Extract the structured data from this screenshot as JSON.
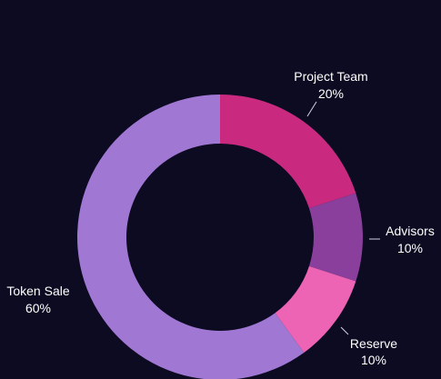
{
  "colors": {
    "background": "#0c0b22"
  },
  "chart_data": {
    "type": "pie",
    "title": "",
    "donut": true,
    "start_angle_deg": 0,
    "direction": "clockwise",
    "slices": [
      {
        "label": "Project Team",
        "value": 20,
        "value_label": "20%",
        "color": "#c92a7f"
      },
      {
        "label": "Advisors",
        "value": 10,
        "value_label": "10%",
        "color": "#8a3f9c"
      },
      {
        "label": "Reserve",
        "value": 10,
        "value_label": "10%",
        "color": "#ec64b3"
      },
      {
        "label": "Token Sale",
        "value": 60,
        "value_label": "60%",
        "color": "#a078d4"
      }
    ]
  }
}
